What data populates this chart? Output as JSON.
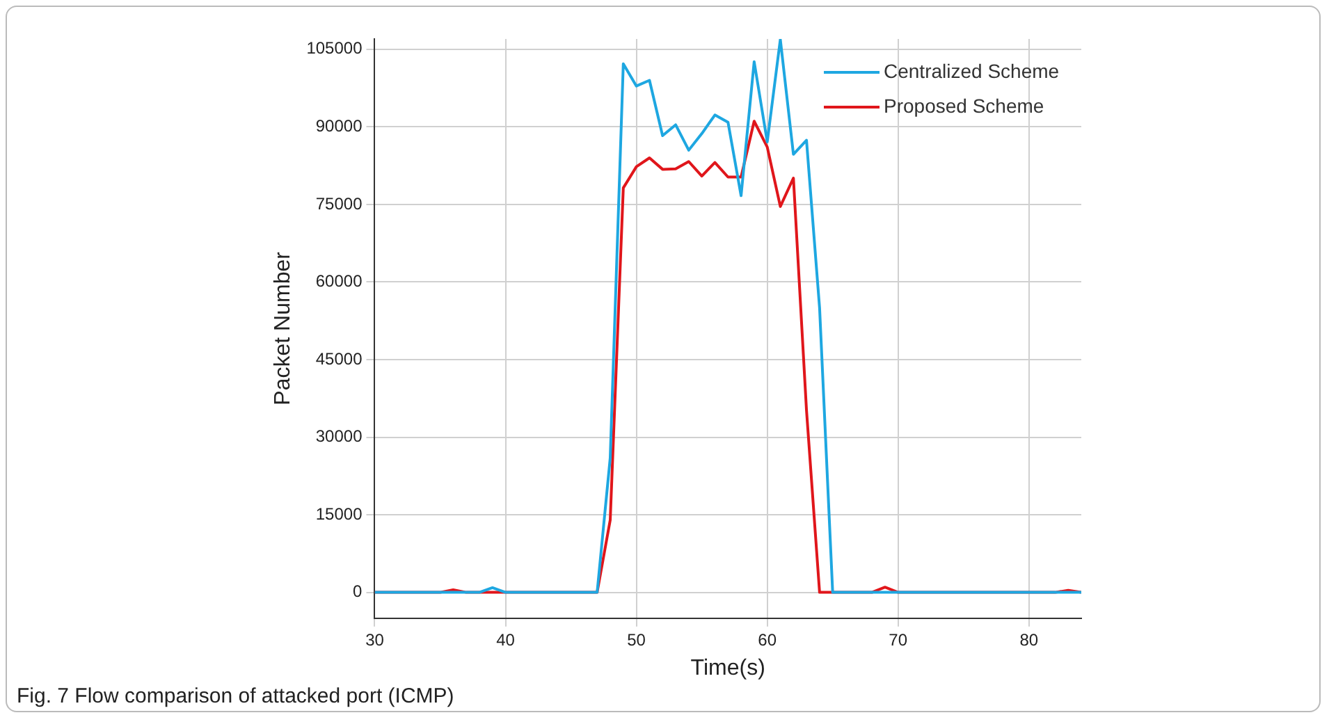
{
  "chart_data": {
    "type": "line",
    "xlabel": "Time(s)",
    "ylabel": "Packet Number",
    "annotations": [
      "Fig. 7  Flow comparison of attacked port (ICMP)"
    ],
    "xlim": [
      30,
      84
    ],
    "xticks": [
      30,
      40,
      50,
      60,
      70,
      80
    ],
    "ylim": [
      -5000,
      107000
    ],
    "yticks": [
      0,
      15000,
      30000,
      45000,
      60000,
      75000,
      90000,
      105000
    ],
    "grid": true,
    "legend": "top right",
    "marker": "none",
    "line_style": "solid",
    "series": [
      {
        "name": "Centralized Scheme",
        "color": "#1ea7e1",
        "x": [
          30,
          38,
          39,
          40,
          47,
          48,
          49,
          50,
          51,
          52,
          53,
          54,
          55,
          56,
          57,
          58,
          59,
          60,
          61,
          62,
          63,
          64,
          65,
          84
        ],
        "values": [
          0,
          0,
          900,
          0,
          0,
          26000,
          102200,
          97900,
          99000,
          88300,
          90400,
          85500,
          88700,
          92300,
          90900,
          76700,
          102600,
          87100,
          106900,
          84700,
          87400,
          55000,
          0,
          0
        ]
      },
      {
        "name": "Proposed Scheme",
        "color": "#e0161b",
        "x": [
          30,
          35,
          36,
          37,
          47,
          48,
          49,
          50,
          51,
          52,
          53,
          54,
          55,
          56,
          57,
          58,
          59,
          60,
          61,
          62,
          63,
          64,
          68,
          69,
          70,
          82,
          83,
          84
        ],
        "values": [
          0,
          0,
          500,
          0,
          0,
          14000,
          78200,
          82300,
          84000,
          81800,
          81900,
          83300,
          80500,
          83100,
          80300,
          80300,
          91100,
          86100,
          74600,
          80100,
          35200,
          0,
          0,
          1000,
          0,
          0,
          400,
          0
        ]
      }
    ]
  }
}
